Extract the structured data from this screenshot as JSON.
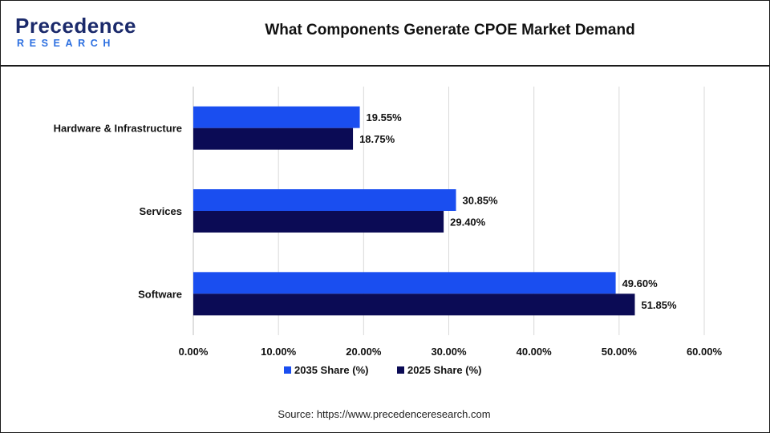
{
  "header": {
    "logo_main": "Precedence",
    "logo_sub": "RESEARCH",
    "title": "What Components Generate CPOE Market Demand"
  },
  "source": "Source: https://www.precedenceresearch.com",
  "colors": {
    "series_2035": "#1a4ef0",
    "series_2025": "#0b0b55",
    "grid": "#d9d9d9"
  },
  "chart_data": {
    "type": "bar",
    "orientation": "horizontal",
    "title": "What Components Generate CPOE Market Demand",
    "categories": [
      "Hardware & Infrastructure",
      "Services",
      "Software"
    ],
    "series": [
      {
        "name": "2035 Share (%)",
        "values": [
          19.55,
          30.85,
          49.6
        ],
        "labels": [
          "19.55%",
          "30.85%",
          "49.60%"
        ]
      },
      {
        "name": "2025 Share (%)",
        "values": [
          18.75,
          29.4,
          51.85
        ],
        "labels": [
          "18.75%",
          "29.40%",
          "51.85%"
        ]
      }
    ],
    "xlim": [
      0,
      60
    ],
    "xticks": [
      0,
      10,
      20,
      30,
      40,
      50,
      60
    ],
    "xtick_labels": [
      "0.00%",
      "10.00%",
      "20.00%",
      "30.00%",
      "40.00%",
      "50.00%",
      "60.00%"
    ],
    "grid": true,
    "legend_position": "bottom"
  }
}
